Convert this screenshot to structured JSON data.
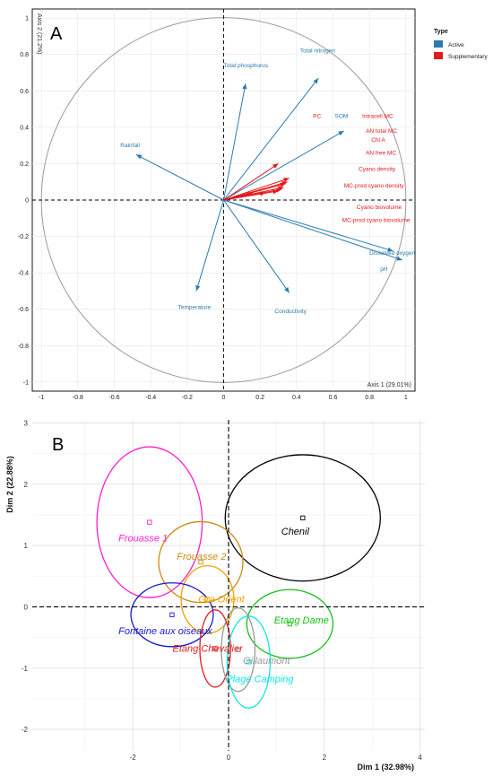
{
  "chart_data": [
    {
      "type": "scatter",
      "panel": "A",
      "xlabel": "Axis 1 (29.01%)",
      "ylabel": "Axis 2 (21.2%)",
      "xlim": [
        -1.05,
        1.05
      ],
      "ylim": [
        -1.05,
        1.05
      ],
      "x_ticks": [
        -1,
        -0.8,
        -0.6,
        -0.4,
        -0.2,
        0,
        0.2,
        0.4,
        0.6,
        0.8,
        1
      ],
      "x_tick_labels": [
        "-1",
        "-0.8",
        "-0.6",
        "-0.4",
        "-0.2",
        "0",
        "0.2",
        "0.4",
        "0.6",
        "0.8",
        "1"
      ],
      "y_ticks": [
        -1,
        -0.8,
        -0.6,
        -0.4,
        -0.2,
        0,
        0.2,
        0.4,
        0.6,
        0.8,
        1
      ],
      "y_tick_labels": [
        "-1",
        "-0.8",
        "-0.6",
        "-0.4",
        "-0.2",
        "0",
        "0.2",
        "0.4",
        "0.6",
        "0.8",
        "1"
      ],
      "grid": true,
      "legend_position": "right",
      "legend": {
        "title": "Type",
        "items": [
          {
            "name": "Active",
            "color": "#2a7ab0"
          },
          {
            "name": "Supplementary",
            "color": "#e41a1c"
          }
        ]
      },
      "vectors": [
        {
          "name": "Total phosphorus",
          "x": 0.12,
          "y": 0.64,
          "type": "Active",
          "lx": 0.0,
          "ly": 0.73,
          "anchor": "start"
        },
        {
          "name": "Total nitrogen",
          "x": 0.52,
          "y": 0.67,
          "type": "Active",
          "lx": 0.42,
          "ly": 0.81,
          "anchor": "start"
        },
        {
          "name": "Rainfall",
          "x": -0.48,
          "y": 0.25,
          "type": "Active",
          "lx": -0.46,
          "ly": 0.29,
          "anchor": "end"
        },
        {
          "name": "SOM",
          "x": 0.66,
          "y": 0.38,
          "type": "Active",
          "lx": 0.61,
          "ly": 0.45,
          "anchor": "start"
        },
        {
          "name": "Temperature",
          "x": -0.15,
          "y": -0.5,
          "type": "Active",
          "lx": -0.25,
          "ly": -0.6,
          "anchor": "start"
        },
        {
          "name": "Conductivity",
          "x": 0.36,
          "y": -0.51,
          "type": "Active",
          "lx": 0.28,
          "ly": -0.62,
          "anchor": "start"
        },
        {
          "name": "Dissolved oxygen",
          "x": 0.93,
          "y": -0.28,
          "type": "Active",
          "lx": 0.8,
          "ly": -0.3,
          "anchor": "start"
        },
        {
          "name": "pH",
          "x": 0.98,
          "y": -0.33,
          "type": "Active",
          "lx": 0.9,
          "ly": -0.39,
          "anchor": "end"
        },
        {
          "name": "PC",
          "x": 0.3,
          "y": 0.2,
          "type": "Supplementary",
          "lx": 0.49,
          "ly": 0.45,
          "anchor": "start"
        },
        {
          "name": "Intracell MC",
          "x": 0.36,
          "y": 0.12,
          "type": "Supplementary",
          "lx": 0.76,
          "ly": 0.45,
          "anchor": "start"
        },
        {
          "name": "AN total MC",
          "x": 0.35,
          "y": 0.1,
          "type": "Supplementary",
          "lx": 0.78,
          "ly": 0.37,
          "anchor": "start"
        },
        {
          "name": "Chl A",
          "x": 0.34,
          "y": 0.09,
          "type": "Supplementary",
          "lx": 0.81,
          "ly": 0.32,
          "anchor": "start"
        },
        {
          "name": "AN free MC",
          "x": 0.33,
          "y": 0.07,
          "type": "Supplementary",
          "lx": 0.78,
          "ly": 0.25,
          "anchor": "start"
        },
        {
          "name": "Cyano density",
          "x": 0.32,
          "y": 0.06,
          "type": "Supplementary",
          "lx": 0.74,
          "ly": 0.16,
          "anchor": "start"
        },
        {
          "name": "MC-prod cyano density",
          "x": 0.3,
          "y": 0.05,
          "type": "Supplementary",
          "lx": 0.66,
          "ly": 0.07,
          "anchor": "start"
        },
        {
          "name": "Cyano biovolume",
          "x": 0.23,
          "y": 0.04,
          "type": "Supplementary",
          "lx": 0.73,
          "ly": -0.05,
          "anchor": "start"
        },
        {
          "name": "MC-prod cyano biovolume",
          "x": 0.16,
          "y": 0.04,
          "type": "Supplementary",
          "lx": 0.65,
          "ly": -0.12,
          "anchor": "start"
        }
      ]
    },
    {
      "type": "scatter",
      "panel": "B",
      "xlabel": "Dim 1 (32.98%)",
      "ylabel": "Dim 2 (22.88%)",
      "xlim": [
        -4.1,
        4.1
      ],
      "ylim": [
        -2.35,
        3.05
      ],
      "x_ticks": [
        -2,
        0,
        2,
        4
      ],
      "x_tick_labels": [
        "-2",
        "0",
        "2",
        "4"
      ],
      "y_ticks": [
        -2,
        -1,
        0,
        1,
        2,
        3
      ],
      "y_tick_labels": [
        "-2",
        "-1",
        "0",
        "1",
        "2",
        "3"
      ],
      "grid": true,
      "groups": [
        {
          "name": "Frouasse 1",
          "color": "#ff1fd0",
          "x": -1.65,
          "y": 1.38,
          "rx": 1.1,
          "ry": 1.23,
          "lx": -2.3,
          "ly": 1.07
        },
        {
          "name": "Chenil",
          "color": "#000000",
          "x": 1.55,
          "y": 1.45,
          "rx": 1.62,
          "ry": 1.03,
          "lx": 1.1,
          "ly": 1.18
        },
        {
          "name": "Frouasse 2",
          "color": "#cc8a10",
          "x": -0.58,
          "y": 0.73,
          "rx": 0.88,
          "ry": 0.66,
          "lx": -1.08,
          "ly": 0.77
        },
        {
          "name": "Gra Orient",
          "color": "#f5a000",
          "x": -0.44,
          "y": 0.12,
          "rx": 0.55,
          "ry": 0.55,
          "lx": -0.63,
          "ly": 0.07
        },
        {
          "name": "Fontaine aux oiseaux",
          "color": "#1a1acc",
          "x": -1.18,
          "y": -0.13,
          "rx": 0.86,
          "ry": 0.52,
          "lx": -2.3,
          "ly": -0.45
        },
        {
          "name": "Etang Dame",
          "color": "#15c015",
          "x": 1.28,
          "y": -0.28,
          "rx": 0.9,
          "ry": 0.56,
          "lx": 0.95,
          "ly": -0.27
        },
        {
          "name": "Etang Chevalier",
          "color": "#e51c1c",
          "x": -0.28,
          "y": -0.68,
          "rx": 0.32,
          "ry": 0.63,
          "lx": -1.17,
          "ly": -0.73
        },
        {
          "name": "Gillaumont",
          "color": "#999999",
          "x": 0.2,
          "y": -0.7,
          "rx": 0.35,
          "ry": 0.68,
          "lx": 0.3,
          "ly": -0.93
        },
        {
          "name": "Plage Camping",
          "color": "#12e4e4",
          "x": 0.42,
          "y": -0.9,
          "rx": 0.45,
          "ry": 0.75,
          "lx": -0.05,
          "ly": -1.23
        }
      ]
    }
  ]
}
